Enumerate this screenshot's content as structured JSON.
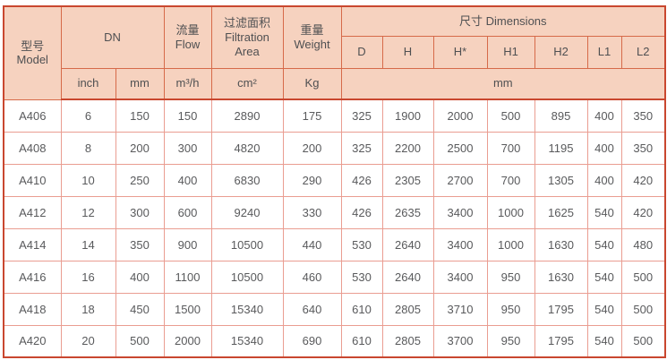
{
  "colors": {
    "header_bg": "#f6d2bf",
    "outer_border": "#c9472f",
    "header_line": "#d66a49",
    "grid_line": "#ea9d91",
    "header_text": "#4f5052",
    "body_text": "#595a5c"
  },
  "header": {
    "model": {
      "zh": "型号",
      "en": "Model"
    },
    "dn": "DN",
    "flow": {
      "zh": "流量",
      "en": "Flow"
    },
    "filtration": {
      "zh": "过滤面积",
      "en1": "Filtration",
      "en2": "Area"
    },
    "weight": {
      "zh": "重量",
      "en": "Weight"
    },
    "dimensions": "尺寸 Dimensions",
    "dim_cols": [
      "D",
      "H",
      "H*",
      "H1",
      "H2",
      "L1",
      "L2"
    ],
    "units": {
      "inch": "inch",
      "mm": "mm",
      "flow": "m³/h",
      "area": "cm²",
      "weight": "Kg",
      "dims": "mm"
    }
  },
  "rows": [
    {
      "model": "A406",
      "values": [
        "6",
        "150",
        "150",
        "2890",
        "175",
        "325",
        "1900",
        "2000",
        "500",
        "895",
        "400",
        "350"
      ]
    },
    {
      "model": "A408",
      "values": [
        "8",
        "200",
        "300",
        "4820",
        "200",
        "325",
        "2200",
        "2500",
        "700",
        "1195",
        "400",
        "350"
      ]
    },
    {
      "model": "A410",
      "values": [
        "10",
        "250",
        "400",
        "6830",
        "290",
        "426",
        "2305",
        "2700",
        "700",
        "1305",
        "400",
        "420"
      ]
    },
    {
      "model": "A412",
      "values": [
        "12",
        "300",
        "600",
        "9240",
        "330",
        "426",
        "2635",
        "3400",
        "1000",
        "1625",
        "540",
        "420"
      ]
    },
    {
      "model": "A414",
      "values": [
        "14",
        "350",
        "900",
        "10500",
        "440",
        "530",
        "2640",
        "3400",
        "1000",
        "1630",
        "540",
        "480"
      ]
    },
    {
      "model": "A416",
      "values": [
        "16",
        "400",
        "1100",
        "10500",
        "460",
        "530",
        "2640",
        "3400",
        "950",
        "1630",
        "540",
        "500"
      ]
    },
    {
      "model": "A418",
      "values": [
        "18",
        "450",
        "1500",
        "15340",
        "640",
        "610",
        "2805",
        "3710",
        "950",
        "1795",
        "540",
        "500"
      ]
    },
    {
      "model": "A420",
      "values": [
        "20",
        "500",
        "2000",
        "15340",
        "690",
        "610",
        "2805",
        "3700",
        "950",
        "1795",
        "540",
        "500"
      ]
    }
  ]
}
